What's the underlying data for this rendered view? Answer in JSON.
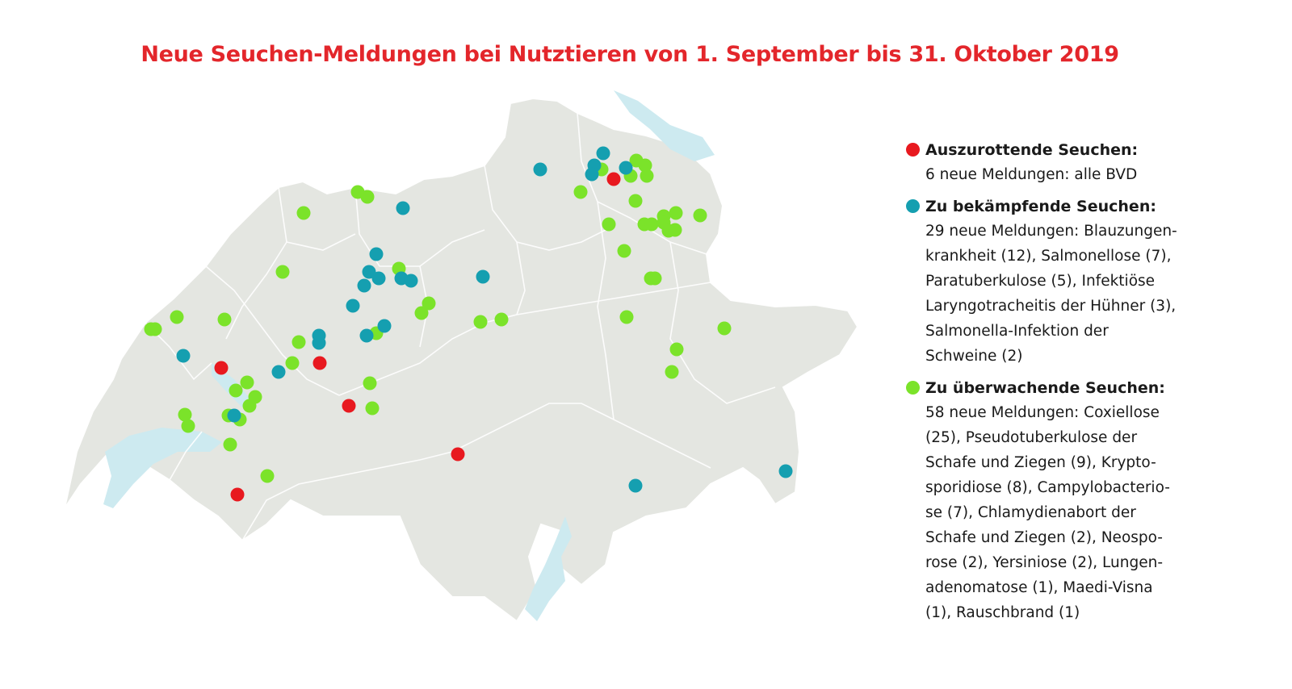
{
  "title": "Neue Seuchen-Meldungen bei Nutztieren von 1. September bis 31. Oktober 2019",
  "colors": {
    "eradicate": "#e8191f",
    "combat": "#159fb0",
    "monitor": "#7be32a",
    "land": "#e4e6e1",
    "water": "#cdeaf0",
    "title": "#e3262b"
  },
  "legend": [
    {
      "key": "eradicate",
      "title": "Auszurottende Seuchen:",
      "lines": [
        "6 neue Meldungen: alle BVD"
      ]
    },
    {
      "key": "combat",
      "title": "Zu bekämpfende Seuchen:",
      "lines": [
        "29 neue Meldungen: Blauzungen-",
        "krankheit (12), Salmonellose (7),",
        "Paratuberkulose (5), Infektiöse",
        "Laryngotracheitis der Hühner (3),",
        "Salmonella-Infektion der",
        "Schweine (2)"
      ]
    },
    {
      "key": "monitor",
      "title": "Zu überwachende Seuchen:",
      "lines": [
        "58 neue Meldungen: Coxiellose",
        "(25), Pseudotuberkulose der",
        "Schafe und Ziegen (9), Krypto-",
        "sporidiose (8), Campylobacterio-",
        "se (7), Chlamydienabort der",
        "Schafe und Ziegen (2), Neospo-",
        "rose (2), Yersiniose (2), Lungen-",
        "adenomatose (1), Maedi-Visna",
        "(1), Rauschbrand (1)"
      ]
    }
  ]
}
